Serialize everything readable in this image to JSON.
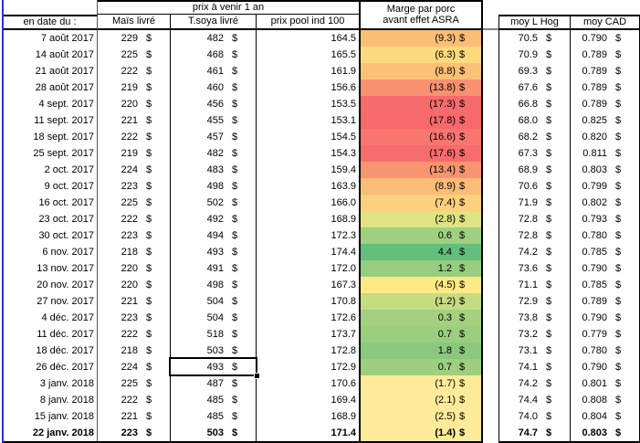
{
  "header": {
    "date_col": "en date du :",
    "prix_group": "prix à venir 1 an",
    "mais": "Maïs livré",
    "soya": "T.soya livré",
    "pool": "prix pool ind 100",
    "marge_line1": "Marge par porc",
    "marge_line2": "avant effet ASRA",
    "moy_hog": "moy L Hog",
    "moy_cad": "moy CAD"
  },
  "currency": "$",
  "colors": {
    "freeze_line": "#2336c9",
    "grid": "#000000",
    "header_gap_line": "#808080"
  },
  "selection": {
    "date": "26 déc. 2017",
    "column": "T.soya livré",
    "value": "493"
  },
  "rows": [
    {
      "date": "7 août 2017",
      "mais": "229",
      "soya": "482",
      "pool": "164.5",
      "marge": "(9.3)",
      "marge_color": "#fbbe77",
      "hog": "70.5",
      "cad": "0.790",
      "bold": false
    },
    {
      "date": "14 août 2017",
      "mais": "225",
      "soya": "468",
      "pool": "165.5",
      "marge": "(6.3)",
      "marge_color": "#fdda80",
      "hog": "70.9",
      "cad": "0.789",
      "bold": false
    },
    {
      "date": "21 août 2017",
      "mais": "222",
      "soya": "461",
      "pool": "161.9",
      "marge": "(8.8)",
      "marge_color": "#fbc177",
      "hog": "69.3",
      "cad": "0.789",
      "bold": false
    },
    {
      "date": "28 août 2017",
      "mais": "219",
      "soya": "460",
      "pool": "156.6",
      "marge": "(13.8)",
      "marge_color": "#f8916f",
      "hog": "67.6",
      "cad": "0.789",
      "bold": false
    },
    {
      "date": "4 sept. 2017",
      "mais": "220",
      "soya": "456",
      "pool": "153.5",
      "marge": "(17.3)",
      "marge_color": "#f76b6c",
      "hog": "66.8",
      "cad": "0.789",
      "bold": false
    },
    {
      "date": "11 sept. 2017",
      "mais": "221",
      "soya": "455",
      "pool": "153.1",
      "marge": "(17.8)",
      "marge_color": "#f7696b",
      "hog": "68.0",
      "cad": "0.825",
      "bold": false
    },
    {
      "date": "18 sept. 2017",
      "mais": "222",
      "soya": "457",
      "pool": "154.5",
      "marge": "(16.6)",
      "marge_color": "#f8766f",
      "hog": "68.2",
      "cad": "0.820",
      "bold": false
    },
    {
      "date": "25 sept. 2017",
      "mais": "219",
      "soya": "482",
      "pool": "154.3",
      "marge": "(17.6)",
      "marge_color": "#f76c6c",
      "hog": "67.3",
      "cad": "0.811",
      "bold": false
    },
    {
      "date": "2 oct. 2017",
      "mais": "224",
      "soya": "483",
      "pool": "159.4",
      "marge": "(13.4)",
      "marge_color": "#f8946f",
      "hog": "68.9",
      "cad": "0.803",
      "bold": false
    },
    {
      "date": "9 oct. 2017",
      "mais": "223",
      "soya": "498",
      "pool": "163.9",
      "marge": "(8.9)",
      "marge_color": "#fbbc77",
      "hog": "70.6",
      "cad": "0.799",
      "bold": false
    },
    {
      "date": "16 oct. 2017",
      "mais": "225",
      "soya": "502",
      "pool": "166.0",
      "marge": "(7.4)",
      "marge_color": "#fdd07d",
      "hog": "71.9",
      "cad": "0.802",
      "bold": false
    },
    {
      "date": "23 oct. 2017",
      "mais": "222",
      "soya": "492",
      "pool": "168.9",
      "marge": "(2.8)",
      "marge_color": "#dfe383",
      "hog": "72.8",
      "cad": "0.793",
      "bold": false
    },
    {
      "date": "30 oct. 2017",
      "mais": "223",
      "soya": "494",
      "pool": "172.3",
      "marge": "0.6",
      "marge_color": "#9fd07f",
      "hog": "72.8",
      "cad": "0.780",
      "bold": false
    },
    {
      "date": "6 nov. 2017",
      "mais": "218",
      "soya": "493",
      "pool": "174.4",
      "marge": "4.4",
      "marge_color": "#63bd7b",
      "hog": "74.2",
      "cad": "0.785",
      "bold": false
    },
    {
      "date": "13 nov. 2017",
      "mais": "220",
      "soya": "491",
      "pool": "172.0",
      "marge": "1.2",
      "marge_color": "#97cd7e",
      "hog": "73.6",
      "cad": "0.790",
      "bold": false
    },
    {
      "date": "20 nov. 2017",
      "mais": "220",
      "soya": "498",
      "pool": "167.3",
      "marge": "(4.5)",
      "marge_color": "#fee984",
      "hog": "71.1",
      "cad": "0.785",
      "bold": false
    },
    {
      "date": "27 nov. 2017",
      "mais": "221",
      "soya": "504",
      "pool": "170.8",
      "marge": "(1.2)",
      "marge_color": "#c5dc82",
      "hog": "72.9",
      "cad": "0.789",
      "bold": false
    },
    {
      "date": "4 déc. 2017",
      "mais": "223",
      "soya": "504",
      "pool": "172.6",
      "marge": "0.3",
      "marge_color": "#a3d180",
      "hog": "73.8",
      "cad": "0.790",
      "bold": false
    },
    {
      "date": "11 déc. 2017",
      "mais": "222",
      "soya": "518",
      "pool": "173.7",
      "marge": "0.7",
      "marge_color": "#9bce7e",
      "hog": "73.2",
      "cad": "0.779",
      "bold": false
    },
    {
      "date": "18 déc. 2017",
      "mais": "218",
      "soya": "503",
      "pool": "172.8",
      "marge": "1.8",
      "marge_color": "#8ac87d",
      "hog": "73.1",
      "cad": "0.780",
      "bold": false
    },
    {
      "date": "26 déc. 2017",
      "mais": "224",
      "soya": "493",
      "pool": "172.9",
      "marge": "0.7",
      "marge_color": "#9dcf7f",
      "hog": "74.1",
      "cad": "0.790",
      "bold": false,
      "selected": true
    },
    {
      "date": "3 janv. 2018",
      "mais": "225",
      "soya": "487",
      "pool": "170.6",
      "marge": "(1.7)",
      "marge_color": "#feeb9a",
      "hog": "74.2",
      "cad": "0.801",
      "bold": false
    },
    {
      "date": "8 janv. 2018",
      "mais": "222",
      "soya": "485",
      "pool": "169.4",
      "marge": "(2.1)",
      "marge_color": "#feeb9a",
      "hog": "74.4",
      "cad": "0.808",
      "bold": false
    },
    {
      "date": "15 janv. 2018",
      "mais": "221",
      "soya": "485",
      "pool": "168.9",
      "marge": "(2.5)",
      "marge_color": "#feeb9a",
      "hog": "74.0",
      "cad": "0.804",
      "bold": false
    },
    {
      "date": "22 janv. 2018",
      "mais": "223",
      "soya": "503",
      "pool": "171.4",
      "marge": "(1.4)",
      "marge_color": "#feeb9a",
      "hog": "74.7",
      "cad": "0.803",
      "bold": true
    }
  ]
}
